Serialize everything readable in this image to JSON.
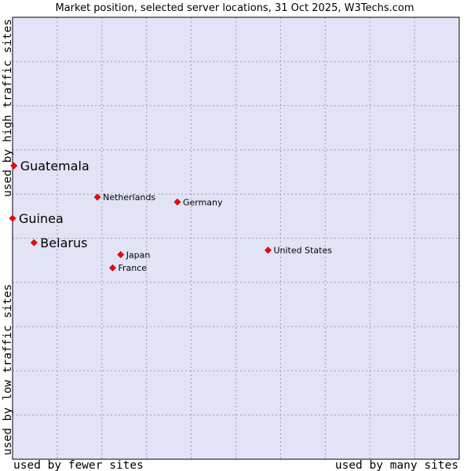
{
  "chart_data": {
    "type": "scatter",
    "title": "Market position, selected server locations, 31 Oct 2025, W3Techs.com",
    "xlabel_left": "used by fewer sites",
    "xlabel_right": "used by many sites",
    "ylabel_bottom": "used by low traffic sites",
    "ylabel_top": "used by high traffic sites",
    "xlim": [
      0,
      100
    ],
    "ylim": [
      0,
      100
    ],
    "grid": true,
    "highlight_color": "#ff0000",
    "plot_background": "#e3e3f8",
    "points": [
      {
        "label": "Guatemala",
        "x": 0.3,
        "y": 66.4,
        "highlight": true
      },
      {
        "label": "Guinea",
        "x": 0,
        "y": 54.5,
        "highlight": true
      },
      {
        "label": "Belarus",
        "x": 4.8,
        "y": 49.0,
        "highlight": true
      },
      {
        "label": "Netherlands",
        "x": 19.0,
        "y": 59.3,
        "highlight": false
      },
      {
        "label": "Germany",
        "x": 36.9,
        "y": 58.2,
        "highlight": false
      },
      {
        "label": "United States",
        "x": 57.2,
        "y": 47.3,
        "highlight": false
      },
      {
        "label": "Japan",
        "x": 24.2,
        "y": 46.3,
        "highlight": false
      },
      {
        "label": "France",
        "x": 22.4,
        "y": 43.3,
        "highlight": false
      }
    ]
  }
}
